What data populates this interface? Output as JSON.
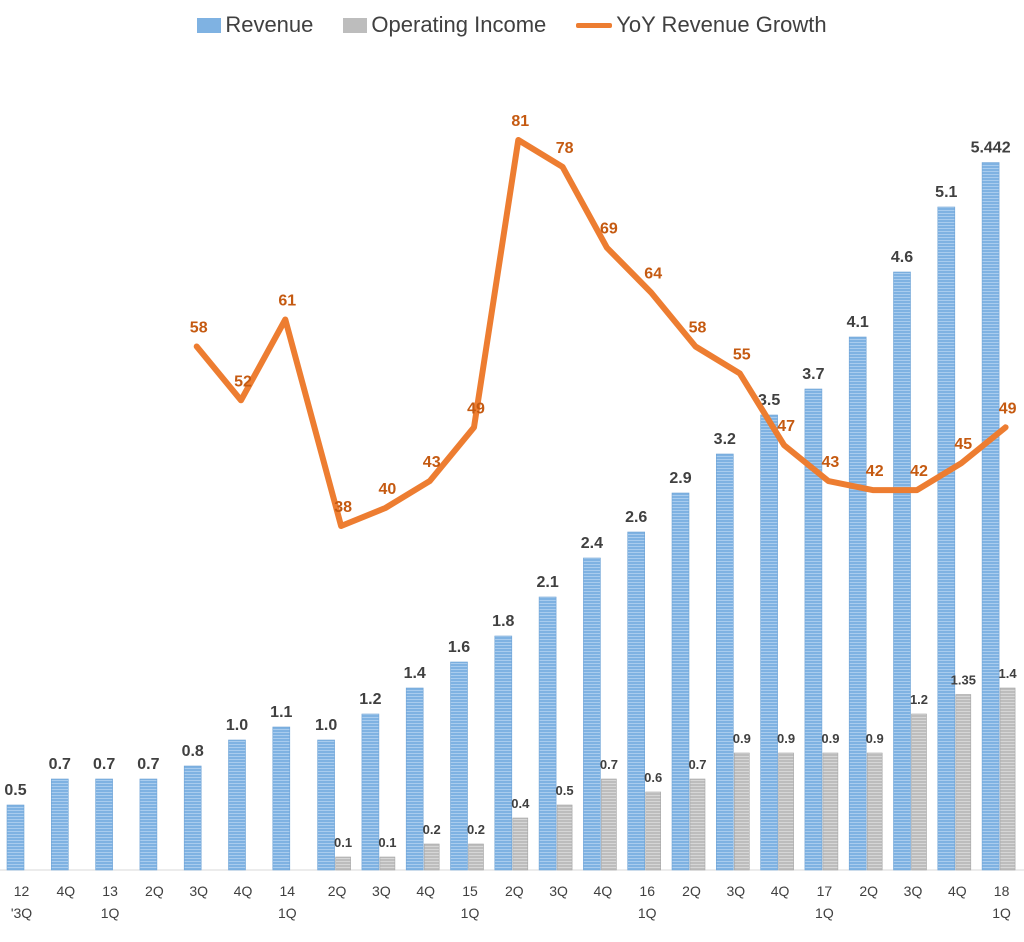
{
  "chart_data": {
    "type": "bar",
    "title": "",
    "xlabel": "",
    "ylabel": "",
    "categories": [
      [
        "12",
        "'3Q"
      ],
      [
        "4Q",
        ""
      ],
      [
        "13",
        "1Q"
      ],
      [
        "2Q",
        ""
      ],
      [
        "3Q",
        ""
      ],
      [
        "4Q",
        ""
      ],
      [
        "14",
        "1Q"
      ],
      [
        "2Q",
        ""
      ],
      [
        "3Q",
        ""
      ],
      [
        "4Q",
        ""
      ],
      [
        "15",
        "1Q"
      ],
      [
        "2Q",
        ""
      ],
      [
        "3Q",
        ""
      ],
      [
        "4Q",
        ""
      ],
      [
        "16",
        "1Q"
      ],
      [
        "2Q",
        ""
      ],
      [
        "3Q",
        ""
      ],
      [
        "4Q",
        ""
      ],
      [
        "17",
        "1Q"
      ],
      [
        "2Q",
        ""
      ],
      [
        "3Q",
        ""
      ],
      [
        "4Q",
        ""
      ],
      [
        "18",
        "1Q"
      ]
    ],
    "series": [
      {
        "name": "Revenue",
        "kind": "bar",
        "color": "#7FB2E2",
        "values": [
          0.5,
          0.7,
          0.7,
          0.7,
          0.8,
          1.0,
          1.1,
          1.0,
          1.2,
          1.4,
          1.6,
          1.8,
          2.1,
          2.4,
          2.6,
          2.9,
          3.2,
          3.5,
          3.7,
          4.1,
          4.6,
          5.1,
          5.442
        ],
        "labels": [
          "0.5",
          "0.7",
          "0.7",
          "0.7",
          "0.8",
          "1.0",
          "1.1",
          "1.0",
          "1.2",
          "1.4",
          "1.6",
          "1.8",
          "2.1",
          "2.4",
          "2.6",
          "2.9",
          "3.2",
          "3.5",
          "3.7",
          "4.1",
          "4.6",
          "5.1",
          "5.442"
        ]
      },
      {
        "name": "Operating Income",
        "kind": "bar",
        "color": "#BDBDBD",
        "values": [
          null,
          null,
          null,
          null,
          null,
          null,
          null,
          0.1,
          0.1,
          0.2,
          0.2,
          0.4,
          0.5,
          0.7,
          0.6,
          0.7,
          0.9,
          0.9,
          0.9,
          0.9,
          1.2,
          1.35,
          1.4
        ],
        "labels": [
          "",
          "",
          "",
          "",
          "",
          "",
          "",
          "0.1",
          "0.1",
          "0.2",
          "0.2",
          "0.4",
          "0.5",
          "0.7",
          "0.6",
          "0.7",
          "0.9",
          "0.9",
          "0.9",
          "0.9",
          "1.2",
          "1.35",
          "1.4"
        ]
      },
      {
        "name": "YoY Revenue Growth",
        "kind": "line",
        "color": "#ED7D31",
        "label_color": "#C55A11",
        "values": [
          null,
          null,
          null,
          null,
          58,
          52,
          61,
          38,
          40,
          43,
          49,
          81,
          78,
          69,
          64,
          58,
          55,
          47,
          43,
          42,
          42,
          45,
          49
        ],
        "labels": [
          "",
          "",
          "",
          "",
          "58",
          "52",
          "61",
          "38",
          "40",
          "43",
          "49",
          "81",
          "78",
          "69",
          "64",
          "58",
          "55",
          "47",
          "43",
          "42",
          "42",
          "45",
          "49"
        ]
      }
    ],
    "ylim_bars": [
      0,
      5.6
    ],
    "ylim_line": [
      0,
      83
    ],
    "grid": false,
    "legend": "top-center"
  }
}
